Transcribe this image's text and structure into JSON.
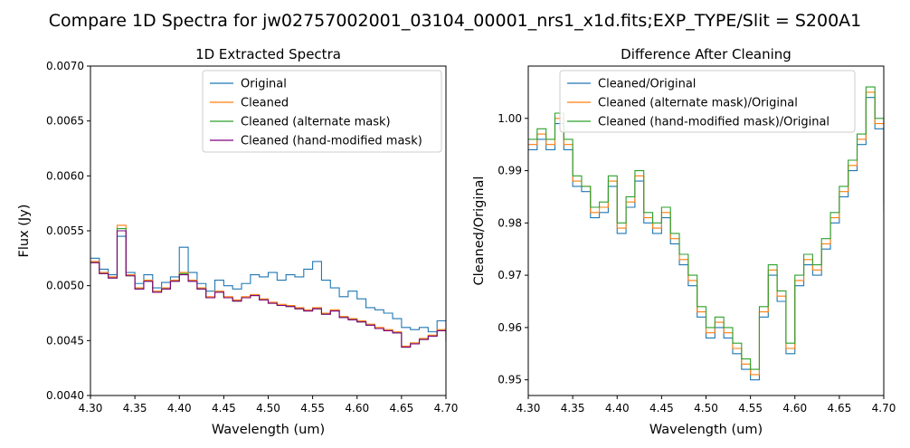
{
  "figure": {
    "title": "Compare 1D Spectra for jw02757002001_03104_00001_nrs1_x1d.fits;EXP_TYPE/Slit = S200A1"
  },
  "chart_data": [
    {
      "type": "line",
      "title": "1D Extracted Spectra",
      "xlabel": "Wavelength (um)",
      "ylabel": "Flux (Jy)",
      "xlim": [
        4.3,
        4.7
      ],
      "ylim": [
        0.004,
        0.007
      ],
      "xticks": [
        4.3,
        4.35,
        4.4,
        4.45,
        4.5,
        4.55,
        4.6,
        4.65,
        4.7
      ],
      "xtick_labels": [
        "4.30",
        "4.35",
        "4.40",
        "4.45",
        "4.50",
        "4.55",
        "4.60",
        "4.65",
        "4.70"
      ],
      "yticks": [
        0.004,
        0.0045,
        0.005,
        0.0055,
        0.006,
        0.0065,
        0.007
      ],
      "ytick_labels": [
        "0.0040",
        "0.0045",
        "0.0050",
        "0.0055",
        "0.0060",
        "0.0065",
        "0.0070"
      ],
      "legend_position": "upper-right",
      "series": [
        {
          "name": "Original",
          "color": "#1f77b4",
          "x": [
            4.3,
            4.31,
            4.32,
            4.33,
            4.34,
            4.35,
            4.36,
            4.37,
            4.38,
            4.39,
            4.4,
            4.41,
            4.42,
            4.43,
            4.44,
            4.45,
            4.46,
            4.47,
            4.48,
            4.49,
            4.5,
            4.51,
            4.52,
            4.53,
            4.54,
            4.55,
            4.56,
            4.57,
            4.58,
            4.59,
            4.6,
            4.61,
            4.62,
            4.63,
            4.64,
            4.65,
            4.66,
            4.67,
            4.68,
            4.69,
            4.7
          ],
          "y": [
            0.00525,
            0.00515,
            0.0051,
            0.00545,
            0.00512,
            0.00502,
            0.0051,
            0.00498,
            0.00503,
            0.00508,
            0.00535,
            0.00512,
            0.00502,
            0.00495,
            0.00505,
            0.005,
            0.00497,
            0.00502,
            0.0051,
            0.00508,
            0.00512,
            0.00505,
            0.0051,
            0.00508,
            0.00515,
            0.00522,
            0.00505,
            0.00498,
            0.0049,
            0.00495,
            0.00488,
            0.0048,
            0.00478,
            0.00475,
            0.0047,
            0.00462,
            0.0046,
            0.00462,
            0.00458,
            0.00468,
            0.00455
          ]
        },
        {
          "name": "Cleaned",
          "color": "#ff7f0e",
          "x": [
            4.3,
            4.31,
            4.32,
            4.33,
            4.34,
            4.35,
            4.36,
            4.37,
            4.38,
            4.39,
            4.4,
            4.41,
            4.42,
            4.43,
            4.44,
            4.45,
            4.46,
            4.47,
            4.48,
            4.49,
            4.5,
            4.51,
            4.52,
            4.53,
            4.54,
            4.55,
            4.56,
            4.57,
            4.58,
            4.59,
            4.6,
            4.61,
            4.62,
            4.63,
            4.64,
            4.65,
            4.66,
            4.67,
            4.68,
            4.69,
            4.7
          ],
          "y": [
            0.00522,
            0.00512,
            0.00508,
            0.00555,
            0.0051,
            0.00498,
            0.00505,
            0.00495,
            0.00498,
            0.00505,
            0.00512,
            0.00505,
            0.00498,
            0.0049,
            0.00495,
            0.0049,
            0.00487,
            0.0049,
            0.00492,
            0.00488,
            0.00485,
            0.00483,
            0.00482,
            0.0048,
            0.00478,
            0.0048,
            0.00475,
            0.00478,
            0.00472,
            0.0047,
            0.00468,
            0.00465,
            0.00462,
            0.0046,
            0.00458,
            0.00445,
            0.00448,
            0.00452,
            0.00455,
            0.0046,
            0.0045
          ]
        },
        {
          "name": "Cleaned (alternate mask)",
          "color": "#2ca02c",
          "x": [
            4.3,
            4.31,
            4.32,
            4.33,
            4.34,
            4.35,
            4.36,
            4.37,
            4.38,
            4.39,
            4.4,
            4.41,
            4.42,
            4.43,
            4.44,
            4.45,
            4.46,
            4.47,
            4.48,
            4.49,
            4.5,
            4.51,
            4.52,
            4.53,
            4.54,
            4.55,
            4.56,
            4.57,
            4.58,
            4.59,
            4.6,
            4.61,
            4.62,
            4.63,
            4.64,
            4.65,
            4.66,
            4.67,
            4.68,
            4.69,
            4.7
          ],
          "y": [
            0.00521,
            0.00511,
            0.00507,
            0.00552,
            0.00509,
            0.00497,
            0.00504,
            0.00494,
            0.00497,
            0.00504,
            0.00511,
            0.00504,
            0.00497,
            0.00489,
            0.00494,
            0.00489,
            0.00486,
            0.00489,
            0.00491,
            0.00487,
            0.00484,
            0.00482,
            0.00481,
            0.00479,
            0.00477,
            0.00479,
            0.00474,
            0.00477,
            0.00471,
            0.00469,
            0.00467,
            0.00464,
            0.00461,
            0.00459,
            0.00457,
            0.00444,
            0.00447,
            0.00451,
            0.00454,
            0.00459,
            0.00449
          ]
        },
        {
          "name": "Cleaned (hand-modified mask)",
          "color": "#800080",
          "x": [
            4.3,
            4.31,
            4.32,
            4.33,
            4.34,
            4.35,
            4.36,
            4.37,
            4.38,
            4.39,
            4.4,
            4.41,
            4.42,
            4.43,
            4.44,
            4.45,
            4.46,
            4.47,
            4.48,
            4.49,
            4.5,
            4.51,
            4.52,
            4.53,
            4.54,
            4.55,
            4.56,
            4.57,
            4.58,
            4.59,
            4.6,
            4.61,
            4.62,
            4.63,
            4.64,
            4.65,
            4.66,
            4.67,
            4.68,
            4.69,
            4.7
          ],
          "y": [
            0.00521,
            0.00511,
            0.00507,
            0.0055,
            0.00509,
            0.00497,
            0.00504,
            0.00494,
            0.00497,
            0.00504,
            0.0051,
            0.00504,
            0.00497,
            0.00489,
            0.00494,
            0.00489,
            0.00486,
            0.00489,
            0.00491,
            0.00487,
            0.00484,
            0.00482,
            0.00481,
            0.00479,
            0.00477,
            0.00479,
            0.00474,
            0.00477,
            0.00471,
            0.00469,
            0.00467,
            0.00464,
            0.00461,
            0.00459,
            0.00457,
            0.00444,
            0.00447,
            0.00451,
            0.00454,
            0.00459,
            0.00449
          ]
        }
      ]
    },
    {
      "type": "line",
      "title": "Difference After Cleaning",
      "xlabel": "Wavelength (um)",
      "ylabel": "Cleaned/Original",
      "xlim": [
        4.3,
        4.7
      ],
      "ylim": [
        0.947,
        1.01
      ],
      "xticks": [
        4.3,
        4.35,
        4.4,
        4.45,
        4.5,
        4.55,
        4.6,
        4.65,
        4.7
      ],
      "xtick_labels": [
        "4.30",
        "4.35",
        "4.40",
        "4.45",
        "4.50",
        "4.55",
        "4.60",
        "4.65",
        "4.70"
      ],
      "yticks": [
        0.95,
        0.96,
        0.97,
        0.98,
        0.99,
        1.0
      ],
      "ytick_labels": [
        "0.95",
        "0.96",
        "0.97",
        "0.98",
        "0.99",
        "1.00"
      ],
      "legend_position": "upper-left",
      "series": [
        {
          "name": "Cleaned/Original",
          "color": "#1f77b4",
          "x": [
            4.3,
            4.31,
            4.32,
            4.33,
            4.34,
            4.35,
            4.36,
            4.37,
            4.38,
            4.39,
            4.4,
            4.41,
            4.42,
            4.43,
            4.44,
            4.45,
            4.46,
            4.47,
            4.48,
            4.49,
            4.5,
            4.51,
            4.52,
            4.53,
            4.54,
            4.55,
            4.56,
            4.57,
            4.58,
            4.59,
            4.6,
            4.61,
            4.62,
            4.63,
            4.64,
            4.65,
            4.66,
            4.67,
            4.68,
            4.69,
            4.7
          ],
          "y": [
            0.994,
            0.996,
            0.994,
            0.999,
            0.994,
            0.987,
            0.986,
            0.981,
            0.982,
            0.987,
            0.978,
            0.983,
            0.988,
            0.98,
            0.978,
            0.981,
            0.976,
            0.972,
            0.968,
            0.962,
            0.958,
            0.96,
            0.958,
            0.955,
            0.952,
            0.95,
            0.962,
            0.97,
            0.965,
            0.955,
            0.968,
            0.972,
            0.97,
            0.975,
            0.98,
            0.985,
            0.99,
            0.995,
            1.004,
            0.998,
            0.982
          ]
        },
        {
          "name": "Cleaned (alternate mask)/Original",
          "color": "#ff7f0e",
          "x": [
            4.3,
            4.31,
            4.32,
            4.33,
            4.34,
            4.35,
            4.36,
            4.37,
            4.38,
            4.39,
            4.4,
            4.41,
            4.42,
            4.43,
            4.44,
            4.45,
            4.46,
            4.47,
            4.48,
            4.49,
            4.5,
            4.51,
            4.52,
            4.53,
            4.54,
            4.55,
            4.56,
            4.57,
            4.58,
            4.59,
            4.6,
            4.61,
            4.62,
            4.63,
            4.64,
            4.65,
            4.66,
            4.67,
            4.68,
            4.69,
            4.7
          ],
          "y": [
            0.995,
            0.997,
            0.995,
            1.0,
            0.995,
            0.988,
            0.987,
            0.982,
            0.983,
            0.988,
            0.979,
            0.984,
            0.989,
            0.981,
            0.979,
            0.982,
            0.977,
            0.973,
            0.969,
            0.963,
            0.959,
            0.961,
            0.959,
            0.956,
            0.953,
            0.951,
            0.963,
            0.971,
            0.966,
            0.956,
            0.969,
            0.973,
            0.971,
            0.976,
            0.981,
            0.986,
            0.991,
            0.996,
            1.005,
            0.999,
            0.983
          ]
        },
        {
          "name": "Cleaned (hand-modified mask)/Original",
          "color": "#2ca02c",
          "x": [
            4.3,
            4.31,
            4.32,
            4.33,
            4.34,
            4.35,
            4.36,
            4.37,
            4.38,
            4.39,
            4.4,
            4.41,
            4.42,
            4.43,
            4.44,
            4.45,
            4.46,
            4.47,
            4.48,
            4.49,
            4.5,
            4.51,
            4.52,
            4.53,
            4.54,
            4.55,
            4.56,
            4.57,
            4.58,
            4.59,
            4.6,
            4.61,
            4.62,
            4.63,
            4.64,
            4.65,
            4.66,
            4.67,
            4.68,
            4.69,
            4.7
          ],
          "y": [
            0.996,
            0.998,
            0.996,
            1.001,
            0.996,
            0.989,
            0.987,
            0.983,
            0.984,
            0.989,
            0.98,
            0.985,
            0.99,
            0.982,
            0.98,
            0.983,
            0.978,
            0.974,
            0.97,
            0.964,
            0.96,
            0.962,
            0.96,
            0.957,
            0.954,
            0.952,
            0.964,
            0.972,
            0.967,
            0.957,
            0.97,
            0.974,
            0.972,
            0.977,
            0.982,
            0.987,
            0.992,
            0.997,
            1.006,
            1.0,
            0.984
          ]
        }
      ]
    }
  ]
}
